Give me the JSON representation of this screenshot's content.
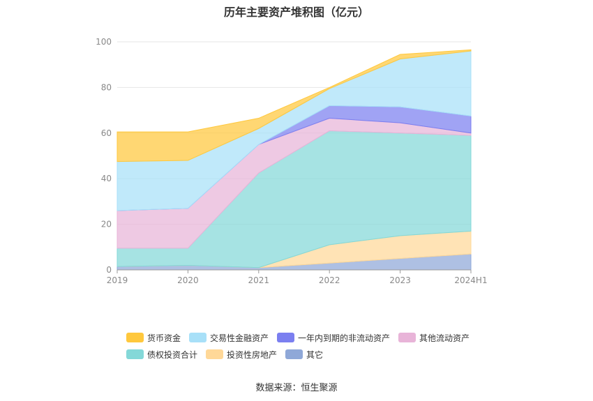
{
  "chart_data": {
    "type": "area",
    "title": "历年主要资产堆积图（亿元）",
    "categories": [
      "2019",
      "2020",
      "2021",
      "2022",
      "2023",
      "2024H1"
    ],
    "yticks": [
      0,
      20,
      40,
      60,
      80,
      100
    ],
    "ylim": [
      0,
      100
    ],
    "stacked": true,
    "series": [
      {
        "name": "其它",
        "color": "#8fa8d8",
        "values": [
          1.5,
          2,
          1,
          3,
          5,
          7
        ]
      },
      {
        "name": "投资性房地产",
        "color": "#ffd898",
        "values": [
          0,
          0,
          0,
          8,
          10,
          10
        ]
      },
      {
        "name": "债权投资合计",
        "color": "#84d8d8",
        "values": [
          8,
          7.5,
          41.5,
          50,
          45,
          42
        ]
      },
      {
        "name": "其他流动资产",
        "color": "#e8b4d8",
        "values": [
          16.5,
          17.5,
          12.5,
          5.5,
          4.5,
          1
        ]
      },
      {
        "name": "一年内到期的非流动资产",
        "color": "#7b7ff0",
        "values": [
          0,
          0,
          0,
          5.5,
          7,
          7.5
        ]
      },
      {
        "name": "交易性金融资产",
        "color": "#a8e0f8",
        "values": [
          21.5,
          21,
          7,
          7.5,
          21,
          28.5
        ]
      },
      {
        "name": "货币资金",
        "color": "#ffc83d",
        "values": [
          13,
          12.5,
          4.5,
          0.5,
          2,
          0.5
        ]
      }
    ],
    "legend_order": [
      "货币资金",
      "交易性金融资产",
      "一年内到期的非流动资产",
      "其他流动资产",
      "债权投资合计",
      "投资性房地产",
      "其它"
    ],
    "legend_position": "bottom",
    "grid": true,
    "source": "数据来源：恒生聚源"
  }
}
